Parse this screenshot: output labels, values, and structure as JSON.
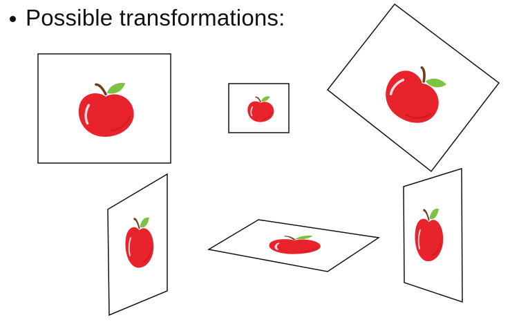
{
  "slide": {
    "bullet_text": "Possible transformations:"
  },
  "colors": {
    "apple_red": "#e8232c",
    "apple_dark_red": "#c5121a",
    "leaf_green": "#7dc242",
    "stem_brown": "#6b3f1e",
    "frame_stroke": "#111111"
  },
  "transformations": [
    {
      "name": "original",
      "icon": "apple-icon"
    },
    {
      "name": "scaled",
      "icon": "apple-icon"
    },
    {
      "name": "rotated",
      "icon": "apple-icon"
    },
    {
      "name": "perspective-left",
      "icon": "apple-icon"
    },
    {
      "name": "perspective-flat",
      "icon": "apple-icon"
    },
    {
      "name": "perspective-right",
      "icon": "apple-icon"
    }
  ]
}
